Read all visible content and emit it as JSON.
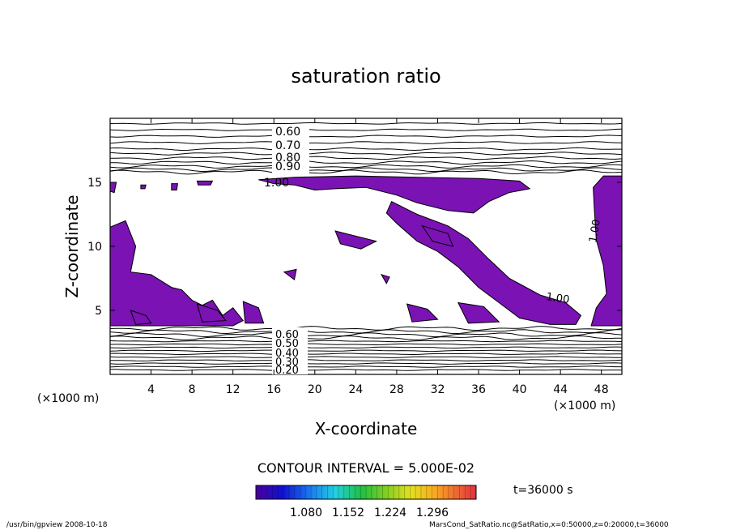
{
  "chart_data": {
    "type": "contour",
    "title": "saturation ratio",
    "xlabel": "X-coordinate",
    "ylabel": "Z-coordinate",
    "x_unit": "(×1000 m)",
    "x_unit_left": "(×1000 m)",
    "xlim": [
      0,
      50
    ],
    "ylim": [
      0,
      20
    ],
    "x_ticks": [
      "4",
      "8",
      "12",
      "16",
      "20",
      "24",
      "28",
      "32",
      "36",
      "40",
      "44",
      "48"
    ],
    "y_ticks": [
      "5",
      "10",
      "15"
    ],
    "contour_labels_top": [
      "0.60",
      "0.70",
      "0.80",
      "0.90",
      "1.00"
    ],
    "contour_labels_bottom": [
      "0.60",
      "0.50",
      "0.40",
      "0.30",
      "0.20"
    ],
    "contour_labels_inline": [
      "1.00",
      "1.00",
      "1.00"
    ],
    "contour_interval_text": "CONTOUR INTERVAL = 5.000E-02",
    "colorbar_ticks": [
      "1.080",
      "1.152",
      "1.224",
      "1.296"
    ],
    "colorbar_range": [
      1.044,
      1.332
    ],
    "fill_color": "#7a12b4",
    "time_text": "t=36000 s",
    "footer_left": "/usr/bin/gpview   2008-10-18",
    "footer_right": "MarsCond_SatRatio.nc@SatRatio,x=0:50000,z=0:20000,t=36000"
  }
}
